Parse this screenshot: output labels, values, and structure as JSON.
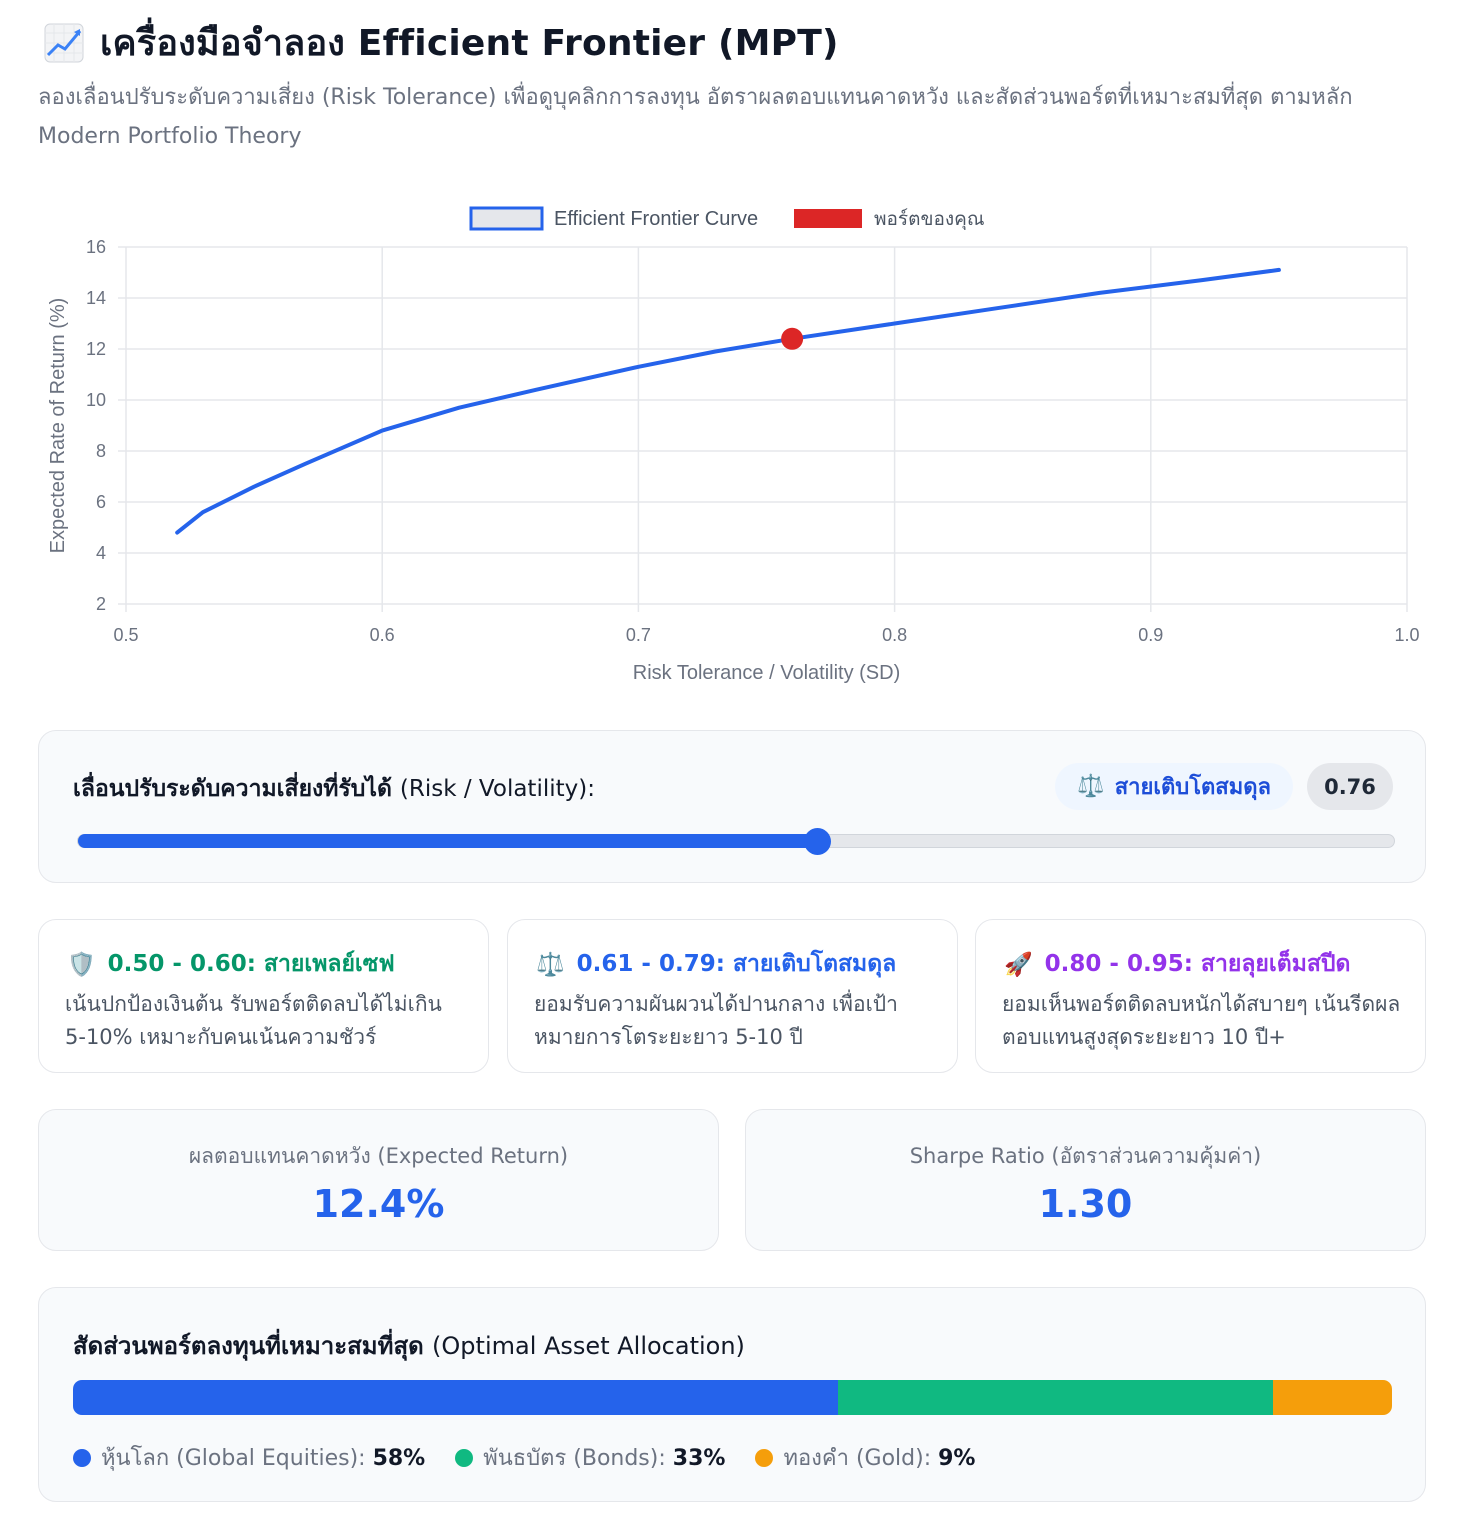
{
  "header": {
    "title": "เครื่องมือจำลอง Efficient Frontier (MPT)",
    "title_icon": "chart-increasing-emoji",
    "subtitle": "ลองเลื่อนปรับระดับความเสี่ยง (Risk Tolerance) เพื่อดูบุคลิกการลงทุน อัตราผลตอบแทนคาดหวัง และสัดส่วนพอร์ตที่เหมาะสมที่สุด ตามหลัก Modern Portfolio Theory"
  },
  "chart_data": {
    "type": "line",
    "legend": [
      "Efficient Frontier Curve",
      "พอร์ตของคุณ"
    ],
    "legend_position": "top-center",
    "xlabel": "Risk Tolerance / Volatility (SD)",
    "ylabel": "Expected Rate of Return (%)",
    "xlim": [
      0.5,
      1.0
    ],
    "ylim": [
      2,
      16
    ],
    "x_ticks": [
      "0.5",
      "0.6",
      "0.7",
      "0.8",
      "0.9",
      "1.0"
    ],
    "y_ticks": [
      "2",
      "4",
      "6",
      "8",
      "10",
      "12",
      "14",
      "16"
    ],
    "grid": true,
    "series": [
      {
        "name": "Efficient Frontier Curve",
        "color": "#2563eb",
        "x": [
          0.52,
          0.53,
          0.55,
          0.57,
          0.6,
          0.63,
          0.66,
          0.7,
          0.73,
          0.76,
          0.8,
          0.84,
          0.88,
          0.92,
          0.95
        ],
        "y": [
          4.8,
          5.6,
          6.6,
          7.5,
          8.8,
          9.7,
          10.4,
          11.3,
          11.9,
          12.4,
          13.0,
          13.6,
          14.2,
          14.7,
          15.1
        ]
      },
      {
        "name": "พอร์ตของคุณ",
        "color": "#dc2626",
        "x": [
          0.76
        ],
        "y": [
          12.4
        ]
      }
    ]
  },
  "slider": {
    "label_th": "เลื่อนปรับระดับความเสี่ยงที่รับได้",
    "label_en": "(Risk / Volatility):",
    "profile_icon": "balance-scale-emoji",
    "profile_label": "สายเติบโตสมดุล",
    "value": "0.76",
    "min": 0.5,
    "max": 0.95,
    "current": 0.76
  },
  "zones": [
    {
      "icon": "shield-emoji",
      "glyph": "🛡️",
      "title": "0.50 - 0.60: สายเพลย์เซฟ",
      "desc": "เน้นปกป้องเงินต้น รับพอร์ตติดลบได้ไม่เกิน 5-10% เหมาะกับคนเน้นความชัวร์"
    },
    {
      "icon": "balance-scale-emoji",
      "glyph": "⚖️",
      "title": "0.61 - 0.79: สายเติบโตสมดุล",
      "desc": "ยอมรับความผันผวนได้ปานกลาง เพื่อเป้าหมายการโตระยะยาว 5-10 ปี"
    },
    {
      "icon": "rocket-emoji",
      "glyph": "🚀",
      "title": "0.80 - 0.95: สายลุยเต็มสปีด",
      "desc": "ยอมเห็นพอร์ตติดลบหนักได้สบายๆ เน้นรีดผลตอบแทนสูงสุดระยะยาว 10 ปี+"
    }
  ],
  "metrics": {
    "expected_return_label": "ผลตอบแทนคาดหวัง (Expected Return)",
    "expected_return_value": "12.4%",
    "sharpe_label": "Sharpe Ratio (อัตราส่วนความคุ้มค่า)",
    "sharpe_value": "1.30"
  },
  "allocation": {
    "title_th": "สัดส่วนพอร์ตลงทุนที่เหมาะสมที่สุด",
    "title_en": "(Optimal Asset Allocation)",
    "items": [
      {
        "label": "หุ้นโลก (Global Equities):",
        "pct": "58%",
        "value": 58,
        "color": "#2563eb"
      },
      {
        "label": "พันธบัตร (Bonds):",
        "pct": "33%",
        "value": 33,
        "color": "#10b981"
      },
      {
        "label": "ทองคำ (Gold):",
        "pct": "9%",
        "value": 9,
        "color": "#f59e0b"
      }
    ]
  }
}
